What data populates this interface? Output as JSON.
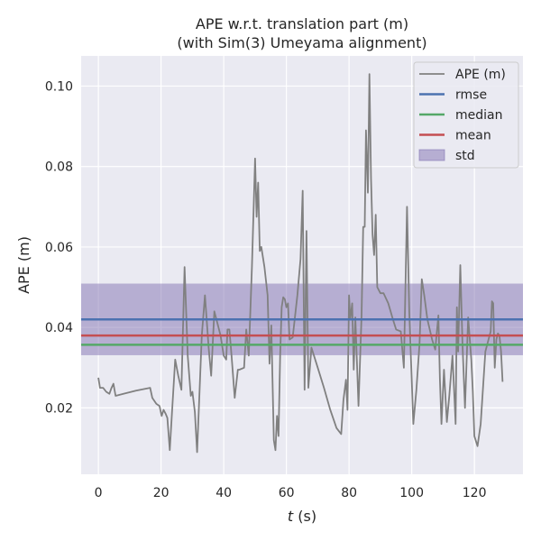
{
  "chart_data": {
    "type": "line",
    "title": [
      "APE w.r.t. translation part (m)",
      "(with Sim(3) Umeyama alignment)"
    ],
    "xlabel": {
      "italic": "t",
      "rest": " (s)"
    },
    "ylabel": "APE (m)",
    "xlim": [
      -5.5,
      135.5
    ],
    "ylim": [
      0.0035,
      0.1075
    ],
    "xticks": [
      0,
      20,
      40,
      60,
      80,
      100,
      120
    ],
    "yticks": [
      0.02,
      0.04,
      0.06,
      0.08,
      0.1
    ],
    "ytick_labels": [
      "0.02",
      "0.04",
      "0.06",
      "0.08",
      "0.10"
    ],
    "grid": true,
    "legend_placement": "top-right",
    "stats": {
      "rmse": 0.042,
      "median": 0.0357,
      "mean": 0.038,
      "std": 0.0089
    },
    "colors": {
      "background": "#eaeaf2",
      "grid": "#ffffff",
      "ape": "#808080",
      "rmse": "#4c72b0",
      "median": "#55a868",
      "mean": "#c44e52",
      "std": "#8172b2"
    },
    "legend": [
      "APE (m)",
      "rmse",
      "median",
      "mean",
      "std"
    ],
    "series": [
      {
        "name": "APE (m)",
        "x": [
          0,
          0.5,
          1.5,
          2.5,
          3.5,
          4.2,
          4.8,
          5.5,
          8,
          12,
          16.5,
          17.2,
          18.5,
          19.5,
          20.2,
          20.8,
          21.5,
          22,
          22.8,
          23.5,
          24.5,
          25.5,
          26.5,
          27.5,
          28.5,
          29.5,
          30,
          30.8,
          31.5,
          33,
          34,
          35.2,
          36,
          37,
          38,
          39,
          40,
          40.8,
          41.2,
          41.8,
          42.5,
          43.5,
          44.5,
          45,
          46.5,
          47.2,
          48,
          49,
          50,
          50.5,
          51,
          51.5,
          52,
          53,
          54,
          54.6,
          55.2,
          56,
          56.5,
          57,
          57.5,
          58,
          58.5,
          59,
          59.5,
          60,
          60.5,
          61,
          62,
          63.5,
          64.5,
          65.2,
          65.8,
          66.4,
          67,
          68,
          70,
          72,
          74,
          76,
          77.5,
          78.2,
          79,
          79.5,
          80,
          80.4,
          81,
          81.5,
          82,
          83,
          84,
          84.5,
          85,
          85.4,
          86,
          86.5,
          87,
          87.5,
          88,
          88.5,
          89,
          90,
          91,
          92.5,
          94,
          95,
          96.5,
          97.5,
          98.5,
          99.2,
          100.5,
          101.5,
          102.5,
          103.2,
          104,
          105,
          106.5,
          107.5,
          108.5,
          109,
          109.5,
          110.3,
          111.2,
          112,
          113,
          113.5,
          114,
          114.4,
          114.8,
          115.5,
          116.2,
          117,
          118,
          119,
          119.5,
          120,
          121,
          122,
          123.5,
          124.5,
          125.2,
          125.6,
          126,
          126.5,
          127,
          127.5,
          128,
          128.5,
          129
        ],
        "y": [
          0.0275,
          0.025,
          0.025,
          0.024,
          0.0235,
          0.025,
          0.026,
          0.023,
          0.0235,
          0.0243,
          0.025,
          0.0225,
          0.021,
          0.0205,
          0.018,
          0.0195,
          0.0185,
          0.0175,
          0.0095,
          0.019,
          0.032,
          0.028,
          0.0245,
          0.055,
          0.033,
          0.023,
          0.024,
          0.019,
          0.009,
          0.038,
          0.048,
          0.035,
          0.028,
          0.044,
          0.041,
          0.038,
          0.033,
          0.032,
          0.0395,
          0.0395,
          0.033,
          0.0225,
          0.0295,
          0.0295,
          0.03,
          0.0395,
          0.033,
          0.055,
          0.082,
          0.0675,
          0.076,
          0.059,
          0.06,
          0.055,
          0.048,
          0.031,
          0.0405,
          0.012,
          0.0095,
          0.018,
          0.013,
          0.033,
          0.045,
          0.0475,
          0.047,
          0.045,
          0.046,
          0.037,
          0.0375,
          0.048,
          0.057,
          0.074,
          0.0245,
          0.064,
          0.025,
          0.035,
          0.03,
          0.025,
          0.0195,
          0.015,
          0.0135,
          0.022,
          0.027,
          0.0195,
          0.048,
          0.042,
          0.046,
          0.0295,
          0.0425,
          0.0205,
          0.043,
          0.065,
          0.065,
          0.089,
          0.0735,
          0.103,
          0.077,
          0.063,
          0.058,
          0.068,
          0.05,
          0.0485,
          0.0485,
          0.046,
          0.042,
          0.0395,
          0.039,
          0.03,
          0.07,
          0.044,
          0.016,
          0.0245,
          0.036,
          0.052,
          0.048,
          0.042,
          0.037,
          0.0345,
          0.043,
          0.027,
          0.016,
          0.0295,
          0.0165,
          0.023,
          0.033,
          0.025,
          0.016,
          0.045,
          0.034,
          0.0555,
          0.036,
          0.02,
          0.0425,
          0.032,
          0.024,
          0.013,
          0.0105,
          0.016,
          0.034,
          0.037,
          0.039,
          0.0465,
          0.046,
          0.03,
          0.037,
          0.0385,
          0.038,
          0.034,
          0.0265
        ]
      }
    ]
  }
}
